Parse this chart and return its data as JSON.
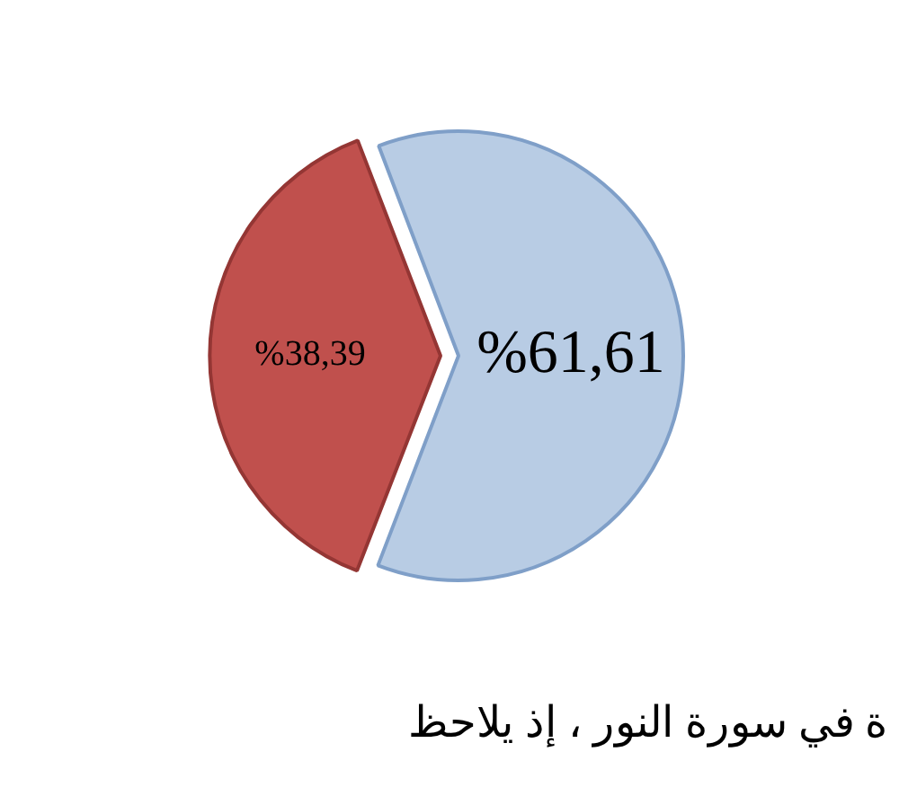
{
  "chart_data": {
    "type": "pie",
    "categories": [
      null,
      null
    ],
    "values": [
      61.61,
      38.39
    ],
    "colors": [
      "#b8cce4",
      "#c0504d"
    ],
    "value_labels": [
      "%61,61",
      "%38,39"
    ],
    "legend": false,
    "annotations": [
      "ة في سورة النور ، إذ يلاحظ"
    ]
  }
}
